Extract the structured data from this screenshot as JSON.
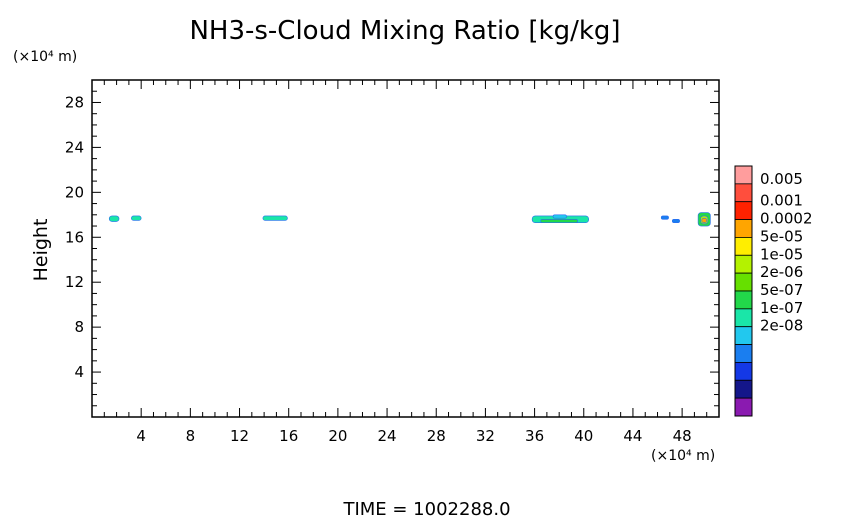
{
  "chart_data": {
    "type": "contour",
    "title": "NH3-s-Cloud Mixing Ratio [kg/kg]",
    "ylabel": "Height",
    "y_unit": "(×10⁴ m)",
    "x_unit": "(×10⁴ m)",
    "footer": "TIME  =  1002288.0",
    "xlim": [
      0,
      51
    ],
    "ylim": [
      0,
      30
    ],
    "x_ticks": [
      4,
      8,
      12,
      16,
      20,
      24,
      28,
      32,
      36,
      40,
      44,
      48
    ],
    "x_tick_labels": [
      "4",
      "8",
      "12",
      "16",
      "20",
      "24",
      "28",
      "32",
      "36",
      "40",
      "44",
      "48"
    ],
    "y_ticks": [
      4,
      8,
      12,
      16,
      20,
      24,
      28
    ],
    "y_tick_labels": [
      "4",
      "8",
      "12",
      "16",
      "20",
      "24",
      "28"
    ],
    "colorbar": {
      "labels": [
        "0.005",
        "0.001",
        "0.0002",
        "5e-05",
        "1e-05",
        "2e-06",
        "5e-07",
        "1e-07",
        "2e-08"
      ],
      "colors": [
        "#ff9d9d",
        "#ff4e3d",
        "#ff2200",
        "#ffa500",
        "#ffee00",
        "#b4f200",
        "#66e000",
        "#22d84a",
        "#1ae6a8",
        "#22c8ee",
        "#1a7ef0",
        "#1438e6",
        "#14168a",
        "#8a1ab0"
      ]
    },
    "blobs": [
      {
        "x": [
          1.4,
          2.2
        ],
        "y": [
          17.4,
          17.9
        ],
        "color": "#1ae6a8"
      },
      {
        "x": [
          3.2,
          4.0
        ],
        "y": [
          17.5,
          17.9
        ],
        "color": "#1ae6a8"
      },
      {
        "x": [
          13.9,
          15.9
        ],
        "y": [
          17.5,
          17.9
        ],
        "color": "#1ae6a8"
      },
      {
        "x": [
          35.8,
          40.4
        ],
        "y": [
          17.3,
          17.9
        ],
        "color": "#1ae6a8"
      },
      {
        "x": [
          37.5,
          38.6
        ],
        "y": [
          17.7,
          18.0
        ],
        "color": "#22c8ee"
      },
      {
        "x": [
          36.5,
          39.5
        ],
        "y": [
          17.3,
          17.6
        ],
        "color": "#22d84a"
      },
      {
        "x": [
          46.3,
          46.9
        ],
        "y": [
          17.6,
          17.9
        ],
        "color": "#1a7ef0"
      },
      {
        "x": [
          47.2,
          47.8
        ],
        "y": [
          17.3,
          17.6
        ],
        "color": "#1a7ef0"
      },
      {
        "x": [
          49.3,
          50.3
        ],
        "y": [
          17.0,
          18.2
        ],
        "color": "#22d84a"
      },
      {
        "x": [
          49.5,
          50.1
        ],
        "y": [
          17.2,
          17.9
        ],
        "color": "#b4f200"
      },
      {
        "x": [
          49.6,
          50.0
        ],
        "y": [
          17.3,
          17.7
        ],
        "color": "#ffa500"
      }
    ]
  }
}
